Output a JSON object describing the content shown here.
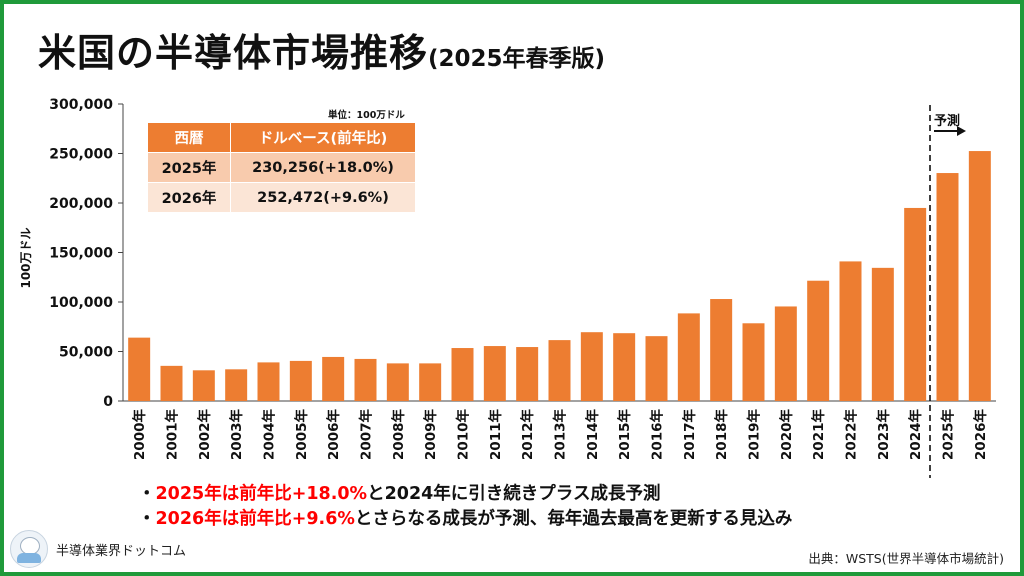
{
  "title": {
    "main": "米国の半導体市場推移",
    "sub": "(2025年春季版)"
  },
  "colors": {
    "bar": "#ed7d31",
    "frame": "#1f9a3a",
    "highlight": "#ff0000",
    "table_header": "#ed7d31",
    "table_row1": "#f8cbad",
    "table_row2": "#fbe5d6"
  },
  "table": {
    "unit_note": "単位：100万ドル",
    "headers": [
      "西暦",
      "ドルベース(前年比)"
    ],
    "rows": [
      {
        "year": "2025年",
        "value": "230,256(+18.0%)"
      },
      {
        "year": "2026年",
        "value": "252,472(+9.6%)"
      }
    ]
  },
  "forecast_label": "予測",
  "bullets": [
    {
      "marker": "・",
      "highlight": "2025年は前年比+18.0%",
      "rest": "と2024年に引き続きプラス成長予測"
    },
    {
      "marker": "・",
      "highlight": "2026年は前年比+9.6%",
      "rest": "とさらなる成長が予測、毎年過去最高を更新する見込み"
    }
  ],
  "site_name": "半導体業界ドットコム",
  "source": "出典：WSTS(世界半導体市場統計)",
  "chart_data": {
    "type": "bar",
    "title": "米国の半導体市場推移",
    "ylabel": "100万ドル",
    "xlabel": "",
    "ylim": [
      0,
      300000
    ],
    "yticks": [
      0,
      50000,
      100000,
      150000,
      200000,
      250000,
      300000
    ],
    "ytick_labels": [
      "0",
      "50,000",
      "100,000",
      "150,000",
      "200,000",
      "250,000",
      "300,000"
    ],
    "grid": false,
    "categories": [
      "2000年",
      "2001年",
      "2002年",
      "2003年",
      "2004年",
      "2005年",
      "2006年",
      "2007年",
      "2008年",
      "2009年",
      "2010年",
      "2011年",
      "2012年",
      "2013年",
      "2014年",
      "2015年",
      "2016年",
      "2017年",
      "2018年",
      "2019年",
      "2020年",
      "2021年",
      "2022年",
      "2023年",
      "2024年",
      "2025年",
      "2026年"
    ],
    "values": [
      64000,
      35500,
      31000,
      32000,
      39000,
      40500,
      44500,
      42500,
      38000,
      38000,
      53500,
      55500,
      54500,
      61500,
      69500,
      68500,
      65500,
      88500,
      103000,
      78500,
      95500,
      121500,
      141000,
      134500,
      195000,
      230256,
      252472
    ],
    "forecast_from": "2025年"
  }
}
